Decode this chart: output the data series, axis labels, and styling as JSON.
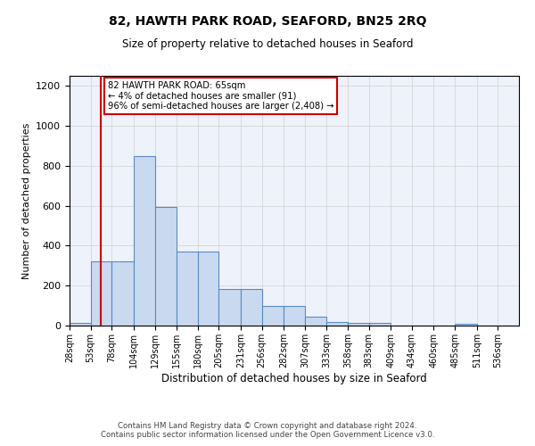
{
  "title": "82, HAWTH PARK ROAD, SEAFORD, BN25 2RQ",
  "subtitle": "Size of property relative to detached houses in Seaford",
  "xlabel": "Distribution of detached houses by size in Seaford",
  "ylabel": "Number of detached properties",
  "footer_line1": "Contains HM Land Registry data © Crown copyright and database right 2024.",
  "footer_line2": "Contains public sector information licensed under the Open Government Licence v3.0.",
  "bin_labels": [
    "28sqm",
    "53sqm",
    "78sqm",
    "104sqm",
    "129sqm",
    "155sqm",
    "180sqm",
    "205sqm",
    "231sqm",
    "256sqm",
    "282sqm",
    "307sqm",
    "333sqm",
    "358sqm",
    "383sqm",
    "409sqm",
    "434sqm",
    "460sqm",
    "485sqm",
    "511sqm",
    "536sqm"
  ],
  "bar_values": [
    15,
    320,
    320,
    850,
    595,
    370,
    370,
    185,
    185,
    100,
    100,
    45,
    20,
    15,
    15,
    0,
    0,
    0,
    10,
    0,
    0
  ],
  "bin_edges": [
    28,
    53,
    78,
    104,
    129,
    155,
    180,
    205,
    231,
    256,
    282,
    307,
    333,
    358,
    383,
    409,
    434,
    460,
    485,
    511,
    536,
    561
  ],
  "property_size": 65,
  "annotation_title": "82 HAWTH PARK ROAD: 65sqm",
  "annotation_line1": "← 4% of detached houses are smaller (91)",
  "annotation_line2": "96% of semi-detached houses are larger (2,408) →",
  "bar_facecolor": "#c9d9ef",
  "bar_edgecolor": "#5a8ac6",
  "vline_color": "#cc0000",
  "annotation_box_edgecolor": "#cc0000",
  "grid_color": "#d0d0d0",
  "background_color": "#eef2fa",
  "ylim": [
    0,
    1250
  ],
  "yticks": [
    0,
    200,
    400,
    600,
    800,
    1000,
    1200
  ]
}
